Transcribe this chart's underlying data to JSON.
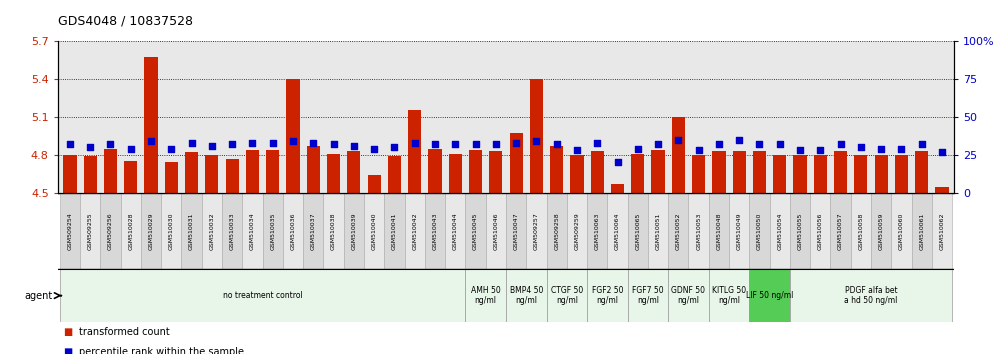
{
  "title": "GDS4048 / 10837528",
  "samples": [
    "GSM509254",
    "GSM509255",
    "GSM509256",
    "GSM510028",
    "GSM510029",
    "GSM510030",
    "GSM510031",
    "GSM510032",
    "GSM510033",
    "GSM510034",
    "GSM510035",
    "GSM510036",
    "GSM510037",
    "GSM510038",
    "GSM510039",
    "GSM510040",
    "GSM510041",
    "GSM510042",
    "GSM510043",
    "GSM510044",
    "GSM510045",
    "GSM510046",
    "GSM510047",
    "GSM509257",
    "GSM509258",
    "GSM509259",
    "GSM510063",
    "GSM510064",
    "GSM510065",
    "GSM510051",
    "GSM510052",
    "GSM510053",
    "GSM510048",
    "GSM510049",
    "GSM510050",
    "GSM510054",
    "GSM510055",
    "GSM510056",
    "GSM510057",
    "GSM510058",
    "GSM510059",
    "GSM510060",
    "GSM510061",
    "GSM510062"
  ],
  "bar_values": [
    4.8,
    4.79,
    4.85,
    4.75,
    5.57,
    4.74,
    4.82,
    4.8,
    4.77,
    4.84,
    4.84,
    5.4,
    4.87,
    4.81,
    4.83,
    4.64,
    4.79,
    5.15,
    4.85,
    4.81,
    4.84,
    4.83,
    4.97,
    5.4,
    4.87,
    4.8,
    4.83,
    4.57,
    4.81,
    4.84,
    5.1,
    4.8,
    4.83,
    4.83,
    4.83,
    4.8,
    4.8,
    4.8,
    4.83,
    4.8,
    4.8,
    4.8,
    4.83,
    4.55
  ],
  "percentile_values": [
    32,
    30,
    32,
    29,
    34,
    29,
    33,
    31,
    32,
    33,
    33,
    34,
    33,
    32,
    31,
    29,
    30,
    33,
    32,
    32,
    32,
    32,
    33,
    34,
    32,
    28,
    33,
    20,
    29,
    32,
    35,
    28,
    32,
    35,
    32,
    32,
    28,
    28,
    32,
    30,
    29,
    29,
    32,
    27
  ],
  "agents": [
    {
      "label": "no treatment control",
      "start": 0,
      "end": 20,
      "color": "#e8f5e9",
      "border": "#cccccc"
    },
    {
      "label": "AMH 50\nng/ml",
      "start": 20,
      "end": 22,
      "color": "#e8f5e9",
      "border": "#cccccc"
    },
    {
      "label": "BMP4 50\nng/ml",
      "start": 22,
      "end": 24,
      "color": "#e8f5e9",
      "border": "#cccccc"
    },
    {
      "label": "CTGF 50\nng/ml",
      "start": 24,
      "end": 26,
      "color": "#e8f5e9",
      "border": "#cccccc"
    },
    {
      "label": "FGF2 50\nng/ml",
      "start": 26,
      "end": 28,
      "color": "#e8f5e9",
      "border": "#cccccc"
    },
    {
      "label": "FGF7 50\nng/ml",
      "start": 28,
      "end": 30,
      "color": "#e8f5e9",
      "border": "#cccccc"
    },
    {
      "label": "GDNF 50\nng/ml",
      "start": 30,
      "end": 32,
      "color": "#e8f5e9",
      "border": "#cccccc"
    },
    {
      "label": "KITLG 50\nng/ml",
      "start": 32,
      "end": 34,
      "color": "#e8f5e9",
      "border": "#cccccc"
    },
    {
      "label": "LIF 50 ng/ml",
      "start": 34,
      "end": 36,
      "color": "#55cc55",
      "border": "#cccccc"
    },
    {
      "label": "PDGF alfa bet\na hd 50 ng/ml",
      "start": 36,
      "end": 44,
      "color": "#e8f5e9",
      "border": "#cccccc"
    }
  ],
  "ylim_left": [
    4.5,
    5.7
  ],
  "ylim_right": [
    0,
    100
  ],
  "yticks_left": [
    4.5,
    4.8,
    5.1,
    5.4,
    5.7
  ],
  "yticks_right": [
    0,
    25,
    50,
    75,
    100
  ],
  "bar_color": "#cc2200",
  "dot_color": "#0000cc",
  "bar_bottom": 4.5,
  "tick_color_left": "#cc2200",
  "tick_color_right": "#0000cc",
  "plot_bg": "#e8e8e8",
  "fig_bg": "#ffffff",
  "sample_box_colors": [
    "#d8d8d8",
    "#e8e8e8"
  ]
}
